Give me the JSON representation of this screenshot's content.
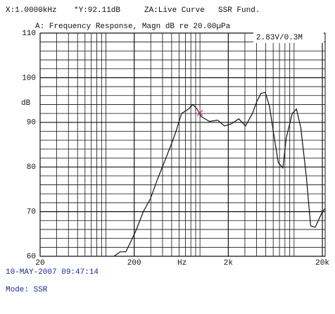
{
  "chart_data": {
    "type": "line",
    "header": [
      "X:1.0000kHz",
      "*Y:92.11dB",
      "ZA:Live Curve",
      "SSR Fund."
    ],
    "title": "A: Frequency Response, Magn dB re 20.00µPa",
    "annotation": "2.83V/0.3M",
    "y_label": "dB",
    "x_label": "Hz",
    "timestamp": "10-MAY-2007 09:47:14",
    "mode": "Mode: SSR",
    "log_x": true,
    "grid": true,
    "xlim": [
      20,
      21400
    ],
    "ylim": [
      60,
      110
    ],
    "xticks": [
      20,
      200,
      {
        "value": 2000,
        "label": "2k"
      },
      {
        "value": 20000,
        "label": "20k"
      }
    ],
    "yticks": [
      60,
      70,
      80,
      90,
      100,
      110
    ],
    "minor_xticks": [
      30,
      40,
      50,
      60,
      70,
      80,
      90,
      100,
      300,
      400,
      500,
      600,
      700,
      800,
      900,
      1000,
      3000,
      4000,
      5000,
      6000,
      7000,
      8000,
      9000,
      10000
    ],
    "minor_yticks": [
      62,
      64,
      66,
      68,
      72,
      74,
      76,
      78,
      82,
      84,
      86,
      88,
      92,
      94,
      96,
      98,
      102,
      104,
      106,
      108
    ],
    "x": [
      122,
      142,
      163,
      187,
      211,
      250,
      296,
      350,
      416,
      494,
      556,
      638,
      756,
      840,
      930,
      1030,
      1260,
      1540,
      1820,
      2170,
      2580,
      3050,
      3610,
      4010,
      4460,
      4950,
      5490,
      6100,
      6800,
      7600,
      8250,
      9580,
      10600,
      11800,
      13500,
      15000,
      16800,
      20000,
      21400
    ],
    "series": [
      {
        "color": "#111111",
        "values": [
          60,
          61,
          61,
          63.6,
          66,
          70,
          72.8,
          77,
          81,
          85,
          88,
          92,
          93,
          94,
          93,
          91.3,
          90.2,
          90.5,
          89.2,
          89.7,
          90.8,
          89.2,
          92,
          94.6,
          96.5,
          96.7,
          93.5,
          87.2,
          81,
          79.8,
          86.5,
          92,
          93,
          88.8,
          77.8,
          66.8,
          66.5,
          70,
          70.7
        ]
      }
    ],
    "cursor": {
      "x": 1000,
      "y": 92.11,
      "color": "#d0307a"
    }
  }
}
